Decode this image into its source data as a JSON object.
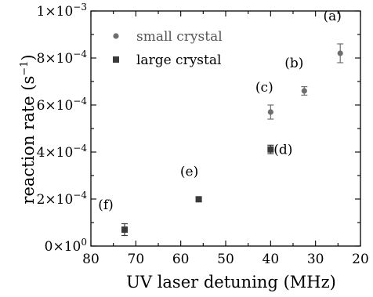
{
  "chart_data": {
    "type": "scatter",
    "xlabel": "UV laser detuning (MHz)",
    "ylabel": "reaction rate (s",
    "ylabel_sup": "−1",
    "ylabel_suffix": ")",
    "xlim": [
      80,
      20
    ],
    "ylim": [
      0,
      0.001
    ],
    "x_ticks": [
      80,
      70,
      60,
      50,
      40,
      30,
      20
    ],
    "y_ticks": [
      {
        "value": 0,
        "mantissa": "0",
        "exp": "0"
      },
      {
        "value": 0.0002,
        "mantissa": "2",
        "exp": "−4"
      },
      {
        "value": 0.0004,
        "mantissa": "4",
        "exp": "−4"
      },
      {
        "value": 0.0006,
        "mantissa": "6",
        "exp": "−4"
      },
      {
        "value": 0.0008,
        "mantissa": "8",
        "exp": "−4"
      },
      {
        "value": 0.001,
        "mantissa": "1",
        "exp": "−3"
      }
    ],
    "legend_position": "top-left",
    "series": [
      {
        "name": "small crystal",
        "marker": "circle",
        "color": "#6e6e6e",
        "points": [
          {
            "x": 24.5,
            "y": 0.00082,
            "err": 4e-05,
            "label": "(a)"
          },
          {
            "x": 32.5,
            "y": 0.00066,
            "err": 1.8e-05,
            "label": "(b)"
          },
          {
            "x": 40,
            "y": 0.00057,
            "err": 3e-05,
            "label": "(c)"
          }
        ]
      },
      {
        "name": "large crystal",
        "marker": "square",
        "color": "#3a3a3a",
        "points": [
          {
            "x": 40,
            "y": 0.000411,
            "err": 1.8e-05,
            "label": "(d)"
          },
          {
            "x": 56,
            "y": 0.000199,
            "err": 8e-06,
            "label": "(e)"
          },
          {
            "x": 72.5,
            "y": 7e-05,
            "err": 2.5e-05,
            "label": "(f)"
          }
        ]
      }
    ]
  }
}
